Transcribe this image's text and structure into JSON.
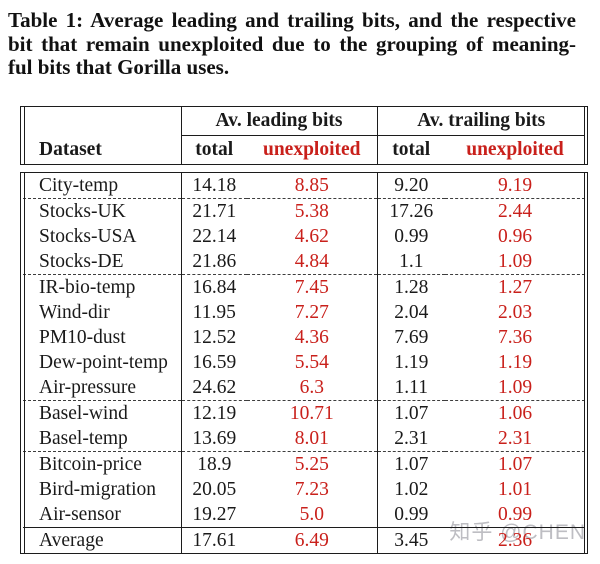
{
  "caption": {
    "lines": [
      "Table 1: Average leading and trailing bits, and the respective",
      "bit that remain unexploited due to the grouping of meaning-",
      "ful bits that Gorilla uses."
    ]
  },
  "watermark": {
    "text": "知乎 @CHEN"
  },
  "colors": {
    "unexploited_red": "#c9201b",
    "text_black": "#1a1a1a",
    "border_black": "#1c1c1c",
    "watermark_gray": "#bbbbc0"
  },
  "table": {
    "headers": {
      "dataset": "Dataset",
      "leading_group": "Av. leading bits",
      "trailing_group": "Av. trailing bits",
      "total": "total",
      "unexploited": "unexploited"
    },
    "rows": [
      {
        "dataset": "City-temp",
        "lead_total": "14.18",
        "lead_unexp": "8.85",
        "trail_total": "9.20",
        "trail_unexp": "9.19",
        "sep_after": "dashed"
      },
      {
        "dataset": "Stocks-UK",
        "lead_total": "21.71",
        "lead_unexp": "5.38",
        "trail_total": "17.26",
        "trail_unexp": "2.44"
      },
      {
        "dataset": "Stocks-USA",
        "lead_total": "22.14",
        "lead_unexp": "4.62",
        "trail_total": "0.99",
        "trail_unexp": "0.96"
      },
      {
        "dataset": "Stocks-DE",
        "lead_total": "21.86",
        "lead_unexp": "4.84",
        "trail_total": "1.1",
        "trail_unexp": "1.09",
        "sep_after": "dashed"
      },
      {
        "dataset": "IR-bio-temp",
        "lead_total": "16.84",
        "lead_unexp": "7.45",
        "trail_total": "1.28",
        "trail_unexp": "1.27"
      },
      {
        "dataset": "Wind-dir",
        "lead_total": "11.95",
        "lead_unexp": "7.27",
        "trail_total": "2.04",
        "trail_unexp": "2.03"
      },
      {
        "dataset": "PM10-dust",
        "lead_total": "12.52",
        "lead_unexp": "4.36",
        "trail_total": "7.69",
        "trail_unexp": "7.36"
      },
      {
        "dataset": "Dew-point-temp",
        "lead_total": "16.59",
        "lead_unexp": "5.54",
        "trail_total": "1.19",
        "trail_unexp": "1.19"
      },
      {
        "dataset": "Air-pressure",
        "lead_total": "24.62",
        "lead_unexp": "6.3",
        "trail_total": "1.11",
        "trail_unexp": "1.09",
        "sep_after": "dashed"
      },
      {
        "dataset": "Basel-wind",
        "lead_total": "12.19",
        "lead_unexp": "10.71",
        "trail_total": "1.07",
        "trail_unexp": "1.06"
      },
      {
        "dataset": "Basel-temp",
        "lead_total": "13.69",
        "lead_unexp": "8.01",
        "trail_total": "2.31",
        "trail_unexp": "2.31",
        "sep_after": "dashed"
      },
      {
        "dataset": "Bitcoin-price",
        "lead_total": "18.9",
        "lead_unexp": "5.25",
        "trail_total": "1.07",
        "trail_unexp": "1.07"
      },
      {
        "dataset": "Bird-migration",
        "lead_total": "20.05",
        "lead_unexp": "7.23",
        "trail_total": "1.02",
        "trail_unexp": "1.01"
      },
      {
        "dataset": "Air-sensor",
        "lead_total": "19.27",
        "lead_unexp": "5.0",
        "trail_total": "0.99",
        "trail_unexp": "0.99"
      },
      {
        "dataset": "Average",
        "lead_total": "17.61",
        "lead_unexp": "6.49",
        "trail_total": "3.45",
        "trail_unexp": "2.36",
        "is_average": true
      }
    ]
  }
}
